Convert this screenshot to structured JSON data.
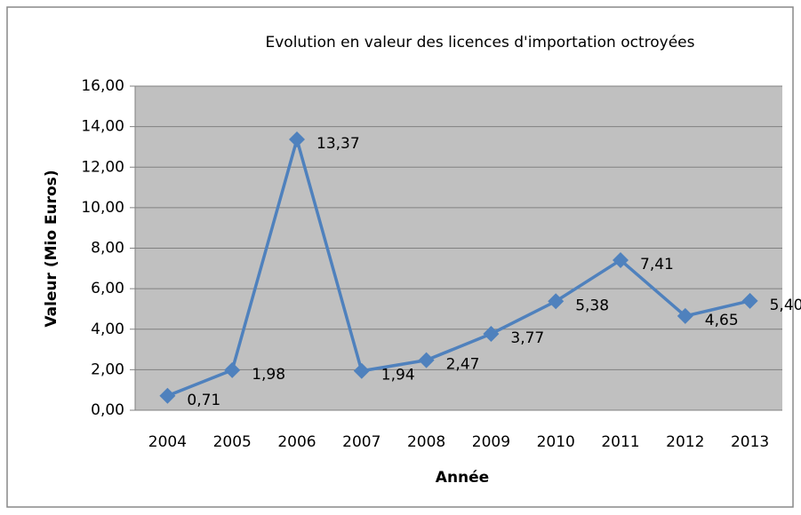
{
  "chart_data": {
    "type": "line",
    "title": "Evolution en valeur des licences d'importation octroyées",
    "xlabel": "Année",
    "ylabel": "Valeur (Mio Euros)",
    "categories": [
      "2004",
      "2005",
      "2006",
      "2007",
      "2008",
      "2009",
      "2010",
      "2011",
      "2012",
      "2013"
    ],
    "series": [
      {
        "name": "Valeur",
        "color": "#4f81bd",
        "values": [
          0.71,
          1.98,
          13.37,
          1.94,
          2.47,
          3.77,
          5.38,
          7.41,
          4.65,
          5.4
        ],
        "value_labels": [
          "0,71",
          "1,98",
          "13,37",
          "1,94",
          "2,47",
          "3,77",
          "5,38",
          "7,41",
          "4,65",
          "5,40"
        ]
      }
    ],
    "ylim": [
      0,
      16
    ],
    "yticks": [
      {
        "value": 0,
        "label": "0,00"
      },
      {
        "value": 2,
        "label": "2,00"
      },
      {
        "value": 4,
        "label": "4,00"
      },
      {
        "value": 6,
        "label": "6,00"
      },
      {
        "value": 8,
        "label": "8,00"
      },
      {
        "value": 10,
        "label": "10,00"
      },
      {
        "value": 12,
        "label": "12,00"
      },
      {
        "value": 14,
        "label": "14,00"
      },
      {
        "value": 16,
        "label": "16,00"
      }
    ],
    "grid": true
  }
}
